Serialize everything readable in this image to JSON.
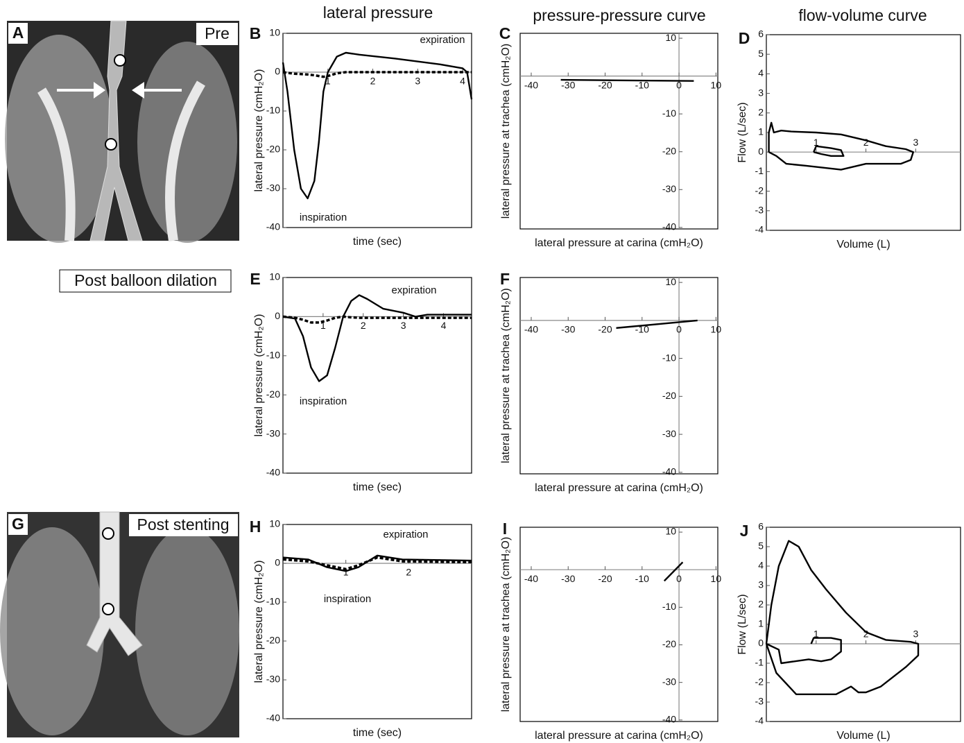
{
  "column_headers": [
    "lateral pressure",
    "pressure-pressure curve",
    "flow-volume curve"
  ],
  "images": [
    {
      "letter": "A",
      "label": "Pre"
    },
    {
      "letter": "G",
      "label": "Post stenting"
    }
  ],
  "row_label": "Post balloon dilation",
  "chart_data": [
    {
      "type": "line",
      "panel": "B",
      "x_label": "time (sec)",
      "y_label": "lateral pressure (cmH₂O)",
      "annotations": [
        "expiration",
        "inspiration"
      ],
      "x": [
        0,
        0.1,
        0.25,
        0.4,
        0.55,
        0.7,
        0.8,
        0.9,
        1.0,
        1.2,
        1.4,
        1.7,
        2.5,
        3.5,
        4.0,
        4.1,
        4.2
      ],
      "series": [
        {
          "color": "#000000",
          "style": "solid",
          "values": [
            2.5,
            -5,
            -20,
            -30,
            -32.5,
            -28,
            -18,
            -5,
            0,
            4,
            5,
            4.5,
            3.5,
            2,
            1,
            0,
            -7
          ]
        },
        {
          "color": "#000000",
          "style": "dashed",
          "values": [
            0,
            -0.2,
            -0.4,
            -0.5,
            -0.6,
            -0.8,
            -1,
            -1.2,
            -1,
            -0.3,
            0,
            0,
            0,
            0,
            0,
            0,
            0
          ]
        }
      ],
      "xlim": [
        0,
        4.2
      ],
      "xticks": [
        1,
        2,
        3,
        4
      ],
      "ylim": [
        -40,
        10
      ],
      "yticks": [
        -40,
        -30,
        -20,
        -10,
        0,
        10
      ]
    },
    {
      "type": "line",
      "panel": "C",
      "x_label": "lateral pressure at carina (cmH₂O)",
      "y_label": "lateral pressure at trachea (cmH₂O)",
      "y_axis_at_zero": true,
      "series": [
        {
          "color": "#000000",
          "style": "solid",
          "x": [
            -32,
            4
          ],
          "values": [
            -1,
            -1.3
          ]
        }
      ],
      "xlim": [
        -43,
        10.5
      ],
      "xticks": [
        -40,
        -30,
        -20,
        -10,
        0,
        10
      ],
      "ylim": [
        -40.4,
        11.3
      ],
      "yticks": [
        -40,
        -30,
        -20,
        -10,
        10
      ]
    },
    {
      "type": "line",
      "panel": "D",
      "x_label": "Volume (L)",
      "y_label": "Flow (L/sec)",
      "series": [
        {
          "color": "#000000",
          "style": "solid",
          "x": [
            0.05,
            0.05,
            0.1,
            0.15,
            0.3,
            0.5,
            1.0,
            1.5,
            2.0,
            2.4,
            2.8,
            2.95,
            2.9,
            2.7,
            2.0,
            1.5,
            0.8,
            0.4,
            0.2,
            0.05
          ],
          "values": [
            0,
            1,
            1.5,
            1.0,
            1.1,
            1.05,
            1.0,
            0.9,
            0.6,
            0.3,
            0.15,
            0,
            -0.4,
            -0.6,
            -0.6,
            -0.9,
            -0.7,
            -0.6,
            -0.2,
            0
          ]
        },
        {
          "color": "#000000",
          "style": "solid",
          "x": [
            0.95,
            1.0,
            1.3,
            1.5,
            1.55,
            1.3,
            1.1,
            0.95
          ],
          "values": [
            0,
            0.3,
            0.2,
            0.1,
            -0.2,
            -0.2,
            -0.1,
            0
          ]
        }
      ],
      "xlim": [
        0,
        3.9
      ],
      "xticks": [
        1,
        2,
        3
      ],
      "ylim": [
        -4,
        6
      ],
      "yticks": [
        -4,
        -3,
        -2,
        -1,
        0,
        1,
        2,
        3,
        4,
        5,
        6
      ]
    },
    {
      "type": "line",
      "panel": "E",
      "x_label": "time (sec)",
      "y_label": "lateral pressure (cmH₂O)",
      "annotations": [
        "expiration",
        "inspiration"
      ],
      "x": [
        0,
        0.3,
        0.5,
        0.7,
        0.9,
        1.1,
        1.3,
        1.5,
        1.7,
        1.9,
        2.1,
        2.5,
        3.0,
        3.3,
        3.6,
        4.7
      ],
      "series": [
        {
          "color": "#000000",
          "style": "solid",
          "values": [
            0,
            -0.5,
            -5,
            -13,
            -16.5,
            -15,
            -8,
            0,
            4,
            5.5,
            4.5,
            2,
            1,
            0,
            0.5,
            0.5
          ]
        },
        {
          "color": "#000000",
          "style": "dashed",
          "values": [
            0,
            -0.3,
            -0.8,
            -1.5,
            -1.5,
            -1,
            -0.3,
            0,
            -0.2,
            -0.3,
            -0.3,
            -0.3,
            -0.3,
            -0.3,
            -0.3,
            -0.3
          ]
        }
      ],
      "xlim": [
        0,
        4.7
      ],
      "xticks": [
        1,
        2,
        3,
        4
      ],
      "ylim": [
        -40,
        10
      ],
      "yticks": [
        -40,
        -30,
        -20,
        -10,
        0,
        10
      ]
    },
    {
      "type": "line",
      "panel": "F",
      "x_label": "lateral pressure at carina (cmH₂O)",
      "y_label": "lateral pressure at trachea (cmH₂O)",
      "y_axis_at_zero": true,
      "series": [
        {
          "color": "#000000",
          "style": "solid",
          "x": [
            -17,
            5
          ],
          "values": [
            -2,
            0
          ]
        }
      ],
      "xlim": [
        -43,
        10.5
      ],
      "xticks": [
        -40,
        -30,
        -20,
        -10,
        0,
        10
      ],
      "ylim": [
        -40.4,
        11.3
      ],
      "yticks": [
        -40,
        -30,
        -20,
        -10,
        10
      ]
    },
    {
      "type": "line",
      "panel": "H",
      "x_label": "time (sec)",
      "y_label": "lateral pressure (cmH₂O)",
      "annotations": [
        "expiration",
        "inspiration"
      ],
      "x": [
        0,
        0.4,
        0.7,
        1.0,
        1.2,
        1.5,
        1.9,
        3.0
      ],
      "series": [
        {
          "color": "#000000",
          "style": "solid",
          "values": [
            1.5,
            1,
            -1,
            -2,
            -1,
            2,
            1,
            0.7
          ]
        },
        {
          "color": "#000000",
          "style": "dashed",
          "values": [
            1,
            0.5,
            -0.5,
            -1.5,
            -0.5,
            1.5,
            0.5,
            0.3
          ]
        }
      ],
      "xlim": [
        0,
        3.0
      ],
      "xticks": [
        1,
        2
      ],
      "ylim": [
        -40,
        10
      ],
      "yticks": [
        -40,
        -30,
        -20,
        -10,
        0,
        10
      ]
    },
    {
      "type": "line",
      "panel": "I",
      "x_label": "lateral pressure at carina (cmH₂O)",
      "y_label": "lateral pressure at trachea (cmH₂O)",
      "y_axis_at_zero": true,
      "series": [
        {
          "color": "#000000",
          "style": "solid",
          "x": [
            -4,
            1
          ],
          "values": [
            -3,
            2
          ]
        }
      ],
      "xlim": [
        -43,
        10.5
      ],
      "xticks": [
        -40,
        -30,
        -20,
        -10,
        0,
        10
      ],
      "ylim": [
        -40.4,
        11.3
      ],
      "yticks": [
        -40,
        -30,
        -20,
        -10,
        10
      ]
    },
    {
      "type": "line",
      "panel": "J",
      "x_label": "Volume (L)",
      "y_label": "Flow (L/sec)",
      "series": [
        {
          "color": "#000000",
          "style": "solid",
          "x": [
            0,
            0.1,
            0.25,
            0.45,
            0.65,
            0.9,
            1.2,
            1.6,
            2.0,
            2.4,
            2.9,
            3.05,
            3.05,
            2.8,
            2.3,
            2.0,
            1.85,
            1.7,
            1.4,
            0.6,
            0.2,
            0
          ],
          "values": [
            0,
            2,
            4,
            5.3,
            5,
            3.8,
            2.8,
            1.6,
            0.6,
            0.2,
            0.1,
            0,
            -0.6,
            -1.2,
            -2.2,
            -2.5,
            -2.5,
            -2.2,
            -2.6,
            -2.6,
            -1.5,
            0
          ]
        },
        {
          "color": "#000000",
          "style": "solid",
          "x": [
            0.9,
            0.95,
            1.3,
            1.5,
            1.5,
            1.3,
            1.1,
            0.85,
            0.3,
            0.25,
            0
          ],
          "values": [
            0,
            0.3,
            0.3,
            0.2,
            -0.4,
            -0.8,
            -0.9,
            -0.8,
            -1.0,
            -0.3,
            0
          ]
        }
      ],
      "xlim": [
        0,
        3.9
      ],
      "xticks": [
        1,
        2,
        3
      ],
      "ylim": [
        -4,
        6
      ],
      "yticks": [
        -4,
        -3,
        -2,
        -1,
        0,
        1,
        2,
        3,
        4,
        5,
        6
      ]
    }
  ]
}
